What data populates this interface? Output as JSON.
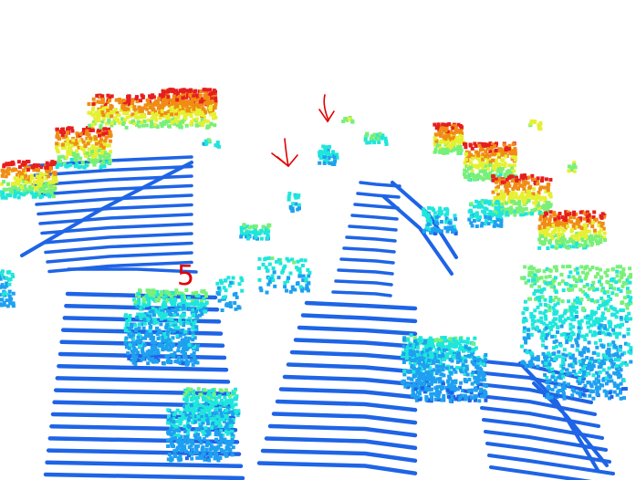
{
  "scene": {
    "kind": "lidar-point-cloud",
    "background": "#ffffff",
    "colormap": [
      "#1e64e6",
      "#1ea0f0",
      "#1ee6dc",
      "#78f078",
      "#e6f032",
      "#f08c14",
      "#e61e1e"
    ]
  },
  "annotations": {
    "label_5": "5",
    "arrow_color": "#e00000"
  }
}
